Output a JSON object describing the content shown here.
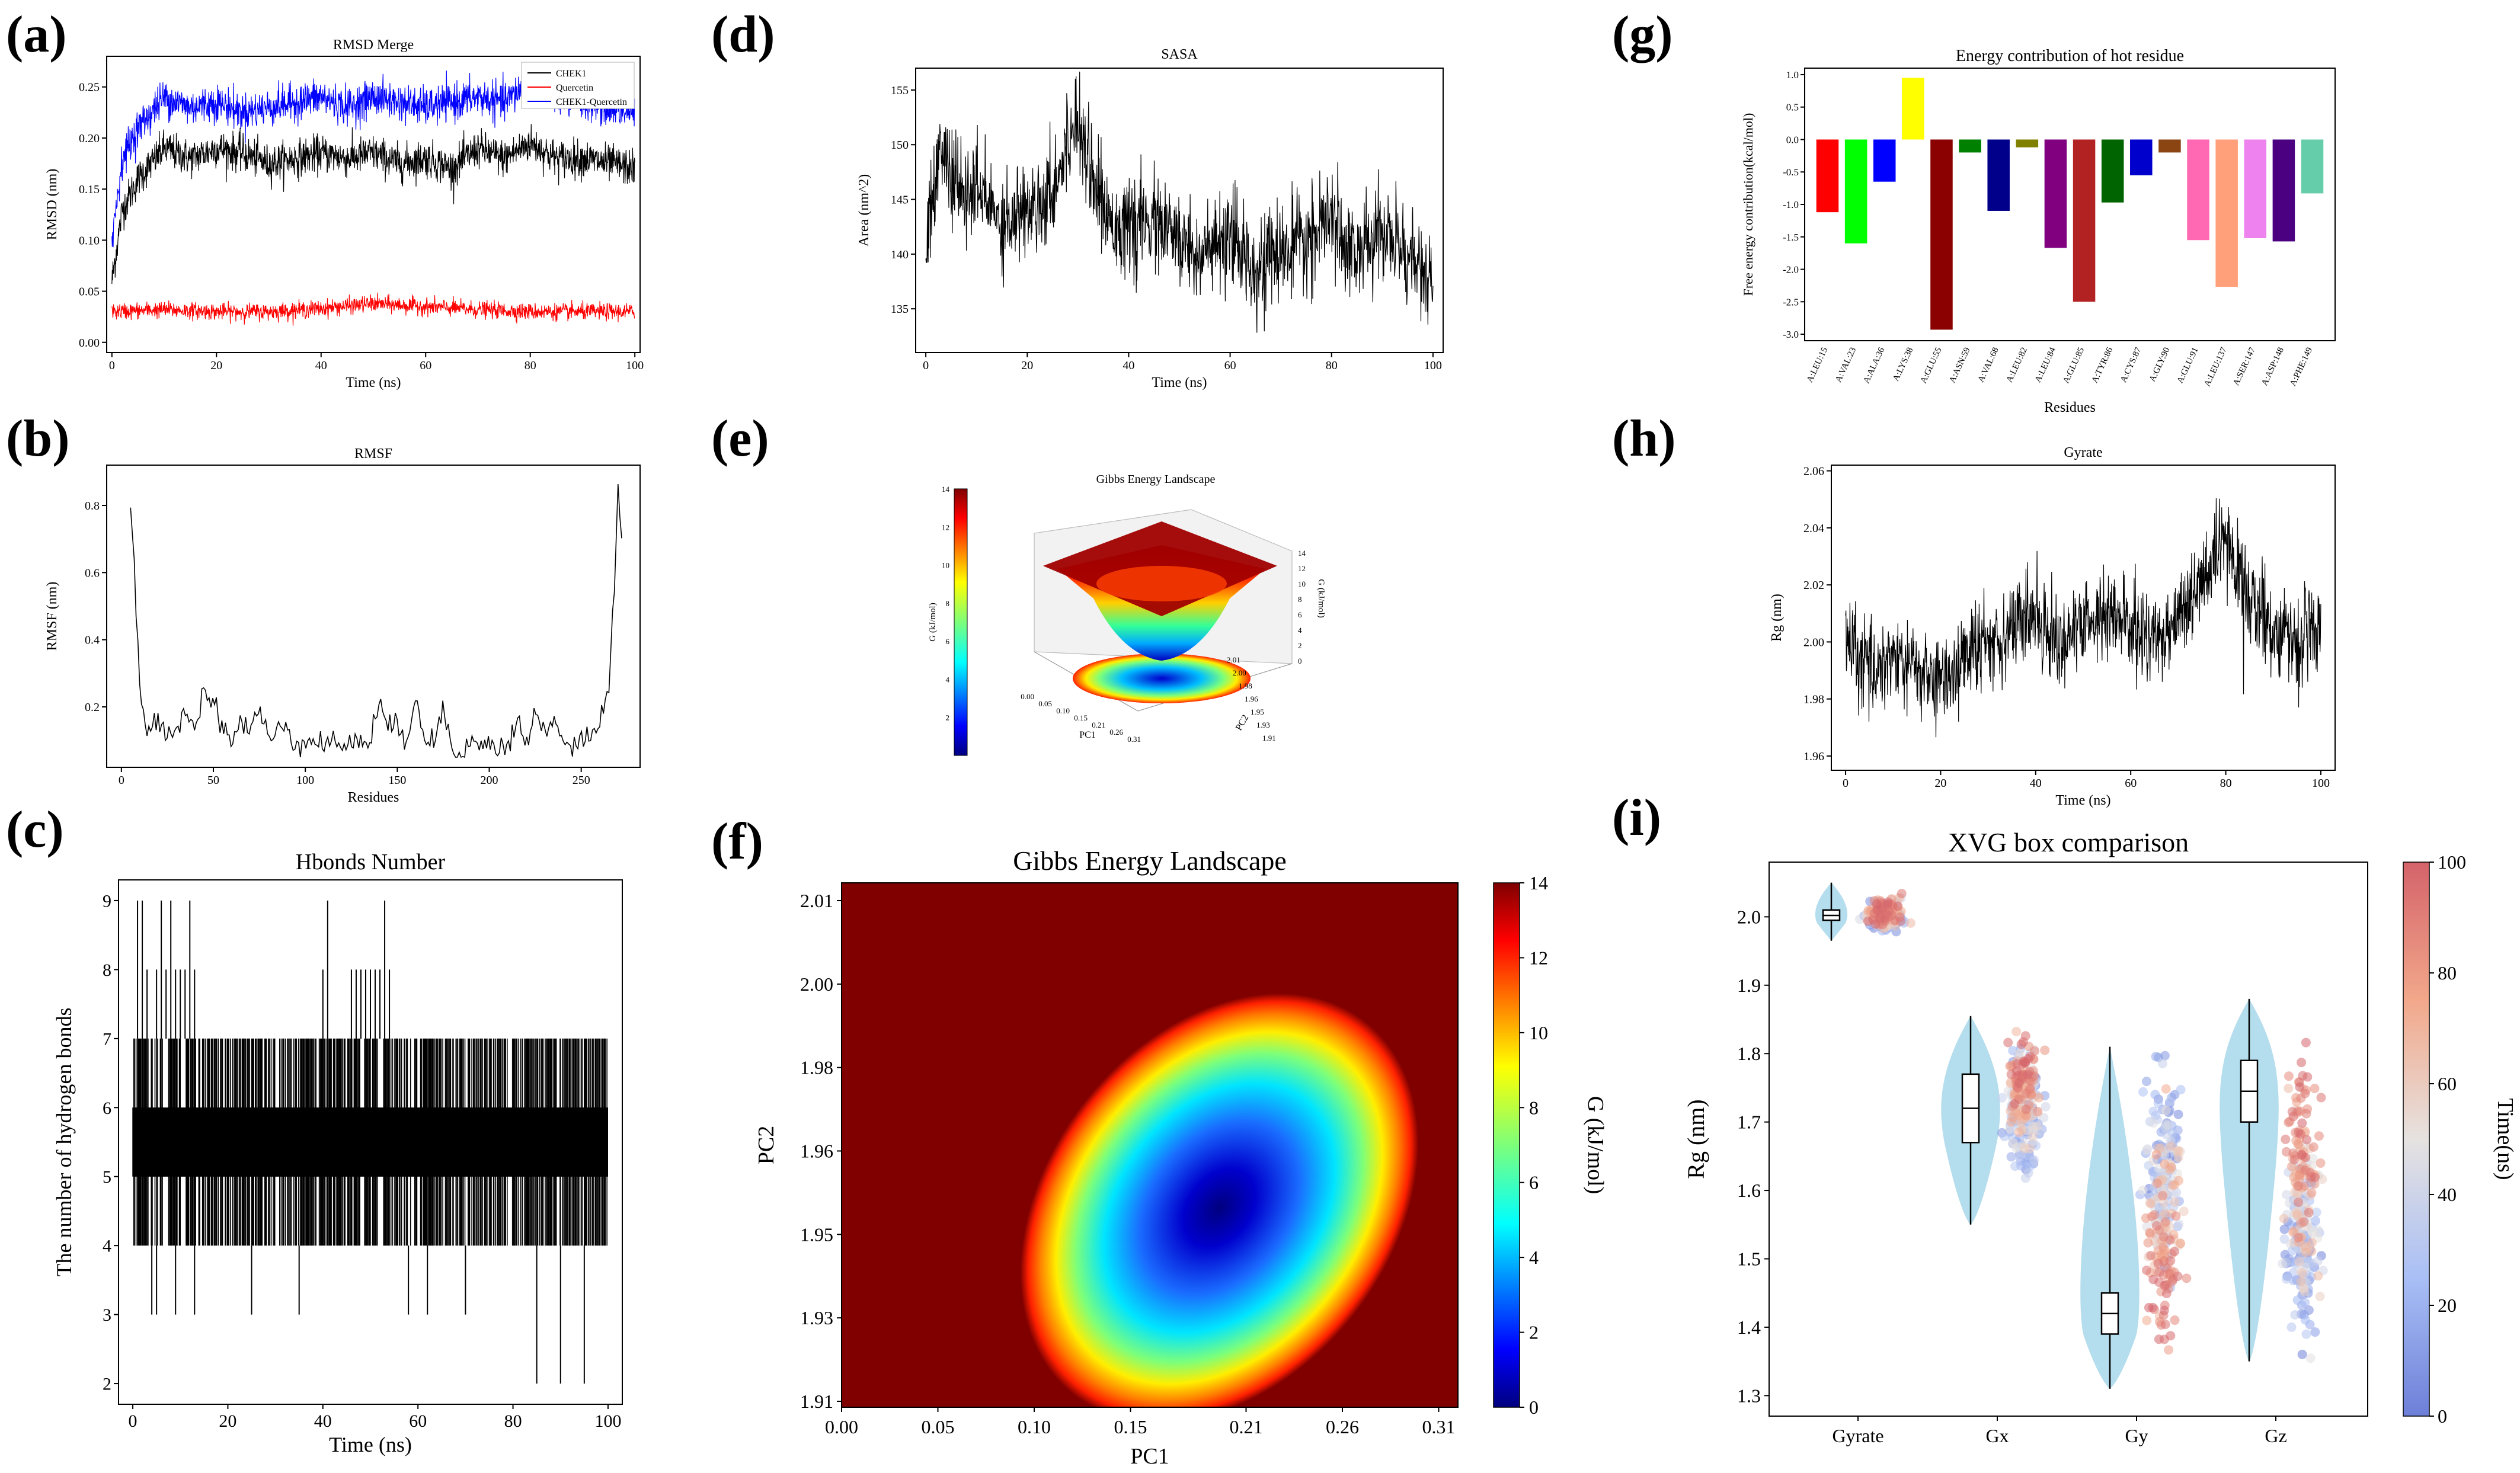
{
  "panel_labels": [
    "(a)",
    "(b)",
    "(c)",
    "(d)",
    "(e)",
    "(f)",
    "(g)",
    "(h)",
    "(i)"
  ],
  "chart_data": [
    {
      "id": "a",
      "type": "line",
      "title": "RMSD Merge",
      "xlabel": "Time (ns)",
      "ylabel": "RMSD (nm)",
      "xlim": [
        -1,
        101
      ],
      "ylim": [
        -0.01,
        0.28
      ],
      "xticks": [
        "0",
        "20",
        "40",
        "60",
        "80",
        "100"
      ],
      "xtick_values": [
        0,
        20,
        40,
        60,
        80,
        100
      ],
      "yticks": [
        "0.00",
        "0.05",
        "0.10",
        "0.15",
        "0.20",
        "0.25"
      ],
      "ytick_values": [
        0,
        0.05,
        0.1,
        0.15,
        0.2,
        0.25
      ],
      "legend": "top-right",
      "series": [
        {
          "name": "CHEK1",
          "color": "#000000",
          "x": [
            0,
            2,
            5,
            10,
            15,
            20,
            25,
            30,
            35,
            40,
            45,
            50,
            55,
            60,
            65,
            70,
            75,
            80,
            85,
            90,
            95,
            100
          ],
          "y": [
            0.06,
            0.13,
            0.16,
            0.19,
            0.18,
            0.19,
            0.185,
            0.175,
            0.18,
            0.185,
            0.18,
            0.185,
            0.175,
            0.18,
            0.17,
            0.19,
            0.18,
            0.195,
            0.18,
            0.18,
            0.175,
            0.17
          ]
        },
        {
          "name": "Quercetin",
          "color": "#ff0000",
          "x": [
            0,
            10,
            20,
            30,
            40,
            50,
            60,
            70,
            80,
            90,
            100
          ],
          "y": [
            0.03,
            0.032,
            0.03,
            0.03,
            0.033,
            0.038,
            0.035,
            0.032,
            0.03,
            0.03,
            0.03
          ]
        },
        {
          "name": "CHEK1-Quercetin",
          "color": "#0000ff",
          "x": [
            0,
            2,
            5,
            10,
            15,
            20,
            25,
            30,
            35,
            40,
            45,
            50,
            55,
            60,
            65,
            70,
            75,
            80,
            85,
            90,
            95,
            100
          ],
          "y": [
            0.1,
            0.18,
            0.21,
            0.24,
            0.23,
            0.235,
            0.225,
            0.23,
            0.235,
            0.24,
            0.23,
            0.24,
            0.235,
            0.23,
            0.235,
            0.24,
            0.235,
            0.255,
            0.24,
            0.235,
            0.23,
            0.225
          ]
        }
      ]
    },
    {
      "id": "b",
      "type": "line",
      "title": "RMSF",
      "xlabel": "Residues",
      "ylabel": "RMSF (nm)",
      "xlim": [
        -8,
        282
      ],
      "ylim": [
        0.02,
        0.92
      ],
      "xticks": [
        "0",
        "50",
        "100",
        "150",
        "200",
        "250"
      ],
      "xtick_values": [
        0,
        50,
        100,
        150,
        200,
        250
      ],
      "yticks": [
        "0.2",
        "0.4",
        "0.6",
        "0.8"
      ],
      "ytick_values": [
        0.2,
        0.4,
        0.6,
        0.8
      ],
      "series": [
        {
          "name": "RMSF",
          "color": "#000000",
          "x": [
            5,
            8,
            10,
            12,
            15,
            20,
            25,
            30,
            35,
            40,
            45,
            50,
            55,
            60,
            65,
            70,
            75,
            80,
            85,
            90,
            95,
            100,
            105,
            110,
            115,
            120,
            125,
            130,
            135,
            140,
            145,
            150,
            155,
            160,
            165,
            170,
            175,
            180,
            185,
            190,
            195,
            200,
            205,
            210,
            215,
            220,
            225,
            230,
            235,
            240,
            245,
            250,
            255,
            260,
            265,
            268,
            270,
            272
          ],
          "y": [
            0.81,
            0.5,
            0.25,
            0.15,
            0.12,
            0.18,
            0.12,
            0.14,
            0.2,
            0.12,
            0.28,
            0.2,
            0.15,
            0.1,
            0.16,
            0.12,
            0.2,
            0.1,
            0.12,
            0.15,
            0.09,
            0.1,
            0.12,
            0.08,
            0.1,
            0.09,
            0.08,
            0.11,
            0.09,
            0.22,
            0.12,
            0.15,
            0.1,
            0.25,
            0.1,
            0.09,
            0.2,
            0.08,
            0.07,
            0.09,
            0.08,
            0.1,
            0.07,
            0.09,
            0.15,
            0.1,
            0.18,
            0.12,
            0.16,
            0.09,
            0.08,
            0.1,
            0.12,
            0.15,
            0.25,
            0.55,
            0.89,
            0.7
          ]
        }
      ]
    },
    {
      "id": "c",
      "type": "line",
      "title": "Hbonds Number",
      "xlabel": "Time (ns)",
      "ylabel": "The number of hydrogen bonds",
      "xlim": [
        -3,
        103
      ],
      "ylim": [
        1.7,
        9.3
      ],
      "xticks": [
        "0",
        "20",
        "40",
        "60",
        "80",
        "100"
      ],
      "xtick_values": [
        0,
        20,
        40,
        60,
        80,
        100
      ],
      "yticks": [
        "2",
        "3",
        "4",
        "5",
        "6",
        "7",
        "8",
        "9"
      ],
      "ytick_values": [
        2,
        3,
        4,
        5,
        6,
        7,
        8,
        9
      ],
      "series": [
        {
          "name": "Hbonds",
          "color": "#000000",
          "band_low": 4,
          "band_high": 7,
          "mode_low": 5,
          "mode_high": 6,
          "spikes_high_x": [
            1,
            2,
            3,
            5,
            6,
            7,
            8,
            9,
            10,
            11,
            12,
            13,
            40,
            41,
            46,
            47,
            48,
            49,
            50,
            51,
            52,
            53,
            54
          ],
          "spikes_low_x": [
            4,
            5,
            9,
            13,
            25,
            35,
            58,
            62,
            70,
            85,
            90,
            95
          ]
        }
      ]
    },
    {
      "id": "d",
      "type": "line",
      "title": "SASA",
      "xlabel": "Time (ns)",
      "ylabel": "Area (nm^2)",
      "xlim": [
        -2,
        102
      ],
      "ylim": [
        131,
        157
      ],
      "xticks": [
        "0",
        "20",
        "40",
        "60",
        "80",
        "100"
      ],
      "xtick_values": [
        0,
        20,
        40,
        60,
        80,
        100
      ],
      "yticks": [
        "135",
        "140",
        "145",
        "150",
        "155"
      ],
      "ytick_values": [
        135,
        140,
        145,
        150,
        155
      ],
      "series": [
        {
          "name": "SASA",
          "color": "#000000",
          "x": [
            0,
            3,
            5,
            8,
            10,
            15,
            20,
            25,
            28,
            30,
            32,
            35,
            40,
            45,
            50,
            55,
            60,
            65,
            70,
            75,
            80,
            85,
            90,
            95,
            100
          ],
          "y": [
            141,
            150,
            147,
            145,
            146,
            143,
            144,
            146,
            150,
            153,
            149,
            144,
            142,
            143,
            141,
            140,
            141,
            139,
            140,
            141,
            143,
            140,
            142,
            140,
            137
          ]
        }
      ]
    },
    {
      "id": "e",
      "type": "surface3d",
      "title": "Gibbs Energy Landscape",
      "xlabel": "PC1",
      "ylabel": "PC2",
      "zlabel": "G (kJ/mol)",
      "colorbar_label": "G (kJ/mol)",
      "colorbar_ticks": [
        "2",
        "4",
        "6",
        "8",
        "10",
        "12",
        "14"
      ],
      "z_ticks": [
        "0",
        "2",
        "4",
        "6",
        "8",
        "10",
        "12",
        "14"
      ],
      "pc1_ticks": [
        "0.00",
        "0.05",
        "0.10",
        "0.15",
        "0.21",
        "0.26",
        "0.31"
      ],
      "pc2_ticks": [
        "1.91",
        "1.93",
        "1.95",
        "1.96",
        "1.98",
        "2.00",
        "2.01"
      ],
      "zlim": [
        0,
        14
      ]
    },
    {
      "id": "f",
      "type": "heatmap",
      "title": "Gibbs Energy Landscape",
      "xlabel": "PC1",
      "ylabel": "PC2",
      "colorbar_label": "G (kJ/mol)",
      "zlim": [
        0,
        14
      ],
      "xticks": [
        "0.00",
        "0.05",
        "0.10",
        "0.15",
        "0.21",
        "0.26",
        "0.31"
      ],
      "xtick_values": [
        0,
        0.05,
        0.1,
        0.15,
        0.21,
        0.26,
        0.31
      ],
      "yticks": [
        "1.91",
        "1.93",
        "1.95",
        "1.96",
        "1.98",
        "2.00",
        "2.01"
      ],
      "colorbar_ticks": [
        "0",
        "2",
        "4",
        "6",
        "8",
        "10",
        "12",
        "14"
      ],
      "minimum": {
        "pc1": 0.19,
        "pc2": 1.955
      },
      "xlim": [
        0,
        0.32
      ],
      "ylim_labels_range": [
        1.91,
        2.01
      ]
    },
    {
      "id": "g",
      "type": "bar",
      "title": "Energy contribution of hot residue",
      "xlabel": "Residues",
      "ylabel": "Free energy contribution(kcal/mol)",
      "ylim": [
        -3.1,
        1.1
      ],
      "yticks": [
        "1.0",
        "0.5",
        "0.0",
        "-0.5",
        "-1.0",
        "-1.5",
        "-2.0",
        "-2.5",
        "-3.0"
      ],
      "ytick_values": [
        1.0,
        0.5,
        0.0,
        -0.5,
        -1.0,
        -1.5,
        -2.0,
        -2.5,
        -3.0
      ],
      "categories": [
        "A:LEU:15",
        "A:VAL:23",
        "A:ALA:36",
        "A:LYS:38",
        "A:GLU:55",
        "A:ASN:59",
        "A:VAL:68",
        "A:LEU:82",
        "A:LEU:84",
        "A:GLU:85",
        "A:TYR:86",
        "A:CYS:87",
        "A:GLY:90",
        "A:GLU:91",
        "A:LEU:137",
        "A:SER:147",
        "A:ASP:148",
        "A:PHE:149"
      ],
      "values": [
        -1.12,
        -1.6,
        -0.65,
        0.95,
        -2.93,
        -0.2,
        -1.1,
        -0.12,
        -1.67,
        -2.5,
        -0.97,
        -0.55,
        -0.2,
        -1.55,
        -2.27,
        -1.52,
        -1.57,
        -0.83
      ],
      "colors": [
        "#ff0000",
        "#00ff00",
        "#0000ff",
        "#ffff00",
        "#8b0000",
        "#008000",
        "#00008b",
        "#808000",
        "#800080",
        "#b22222",
        "#006400",
        "#0000cd",
        "#8b4513",
        "#ff69b4",
        "#ffa07a",
        "#ee82ee",
        "#4b0082",
        "#66cdaa"
      ]
    },
    {
      "id": "h",
      "type": "line",
      "title": "Gyrate",
      "xlabel": "Time (ns)",
      "ylabel": "Rg (nm)",
      "xlim": [
        -3,
        103
      ],
      "ylim": [
        1.955,
        2.062
      ],
      "xticks": [
        "0",
        "20",
        "40",
        "60",
        "80",
        "100"
      ],
      "xtick_values": [
        0,
        20,
        40,
        60,
        80,
        100
      ],
      "yticks": [
        "1.96",
        "1.98",
        "2.00",
        "2.02",
        "2.04",
        "2.06"
      ],
      "ytick_values": [
        1.96,
        1.98,
        2.0,
        2.02,
        2.04,
        2.06
      ],
      "series": [
        {
          "name": "Gyrate",
          "color": "#000000",
          "x": [
            0,
            5,
            10,
            15,
            20,
            25,
            30,
            35,
            40,
            45,
            50,
            55,
            60,
            65,
            70,
            75,
            80,
            85,
            90,
            95,
            100
          ],
          "y": [
            2.0,
            1.99,
            1.995,
            1.99,
            1.985,
            1.995,
            2.0,
            2.005,
            2.01,
            2.0,
            2.005,
            2.01,
            2.005,
            2.0,
            2.01,
            2.02,
            2.035,
            2.015,
            2.005,
            2.0,
            2.005
          ]
        }
      ]
    },
    {
      "id": "i",
      "type": "box",
      "title": "XVG box comparison",
      "ylabel": "Rg (nm)",
      "colorbar_label": "Time(ns)",
      "colorbar_ticks": [
        "0",
        "20",
        "40",
        "60",
        "80",
        "100"
      ],
      "ylim": [
        1.27,
        2.08
      ],
      "yticks": [
        "1.3",
        "1.4",
        "1.5",
        "1.6",
        "1.7",
        "1.8",
        "1.9",
        "2.0"
      ],
      "ytick_values": [
        1.3,
        1.4,
        1.5,
        1.6,
        1.7,
        1.8,
        1.9,
        2.0
      ],
      "categories": [
        "Gyrate",
        "Gx",
        "Gy",
        "Gz"
      ],
      "boxes": [
        {
          "name": "Gyrate",
          "min": 1.965,
          "q1": 1.995,
          "median": 2.002,
          "q3": 2.01,
          "max": 2.05
        },
        {
          "name": "Gx",
          "min": 1.55,
          "q1": 1.67,
          "median": 1.72,
          "q3": 1.77,
          "max": 1.855
        },
        {
          "name": "Gy",
          "min": 1.31,
          "q1": 1.39,
          "median": 1.42,
          "q3": 1.45,
          "max": 1.81
        },
        {
          "name": "Gz",
          "min": 1.35,
          "q1": 1.7,
          "median": 1.745,
          "q3": 1.79,
          "max": 1.88
        }
      ],
      "scatter_early_means": [
        2.0,
        1.7,
        1.65,
        1.5
      ],
      "scatter_late_means": [
        2.01,
        1.78,
        1.44,
        1.72
      ]
    }
  ]
}
